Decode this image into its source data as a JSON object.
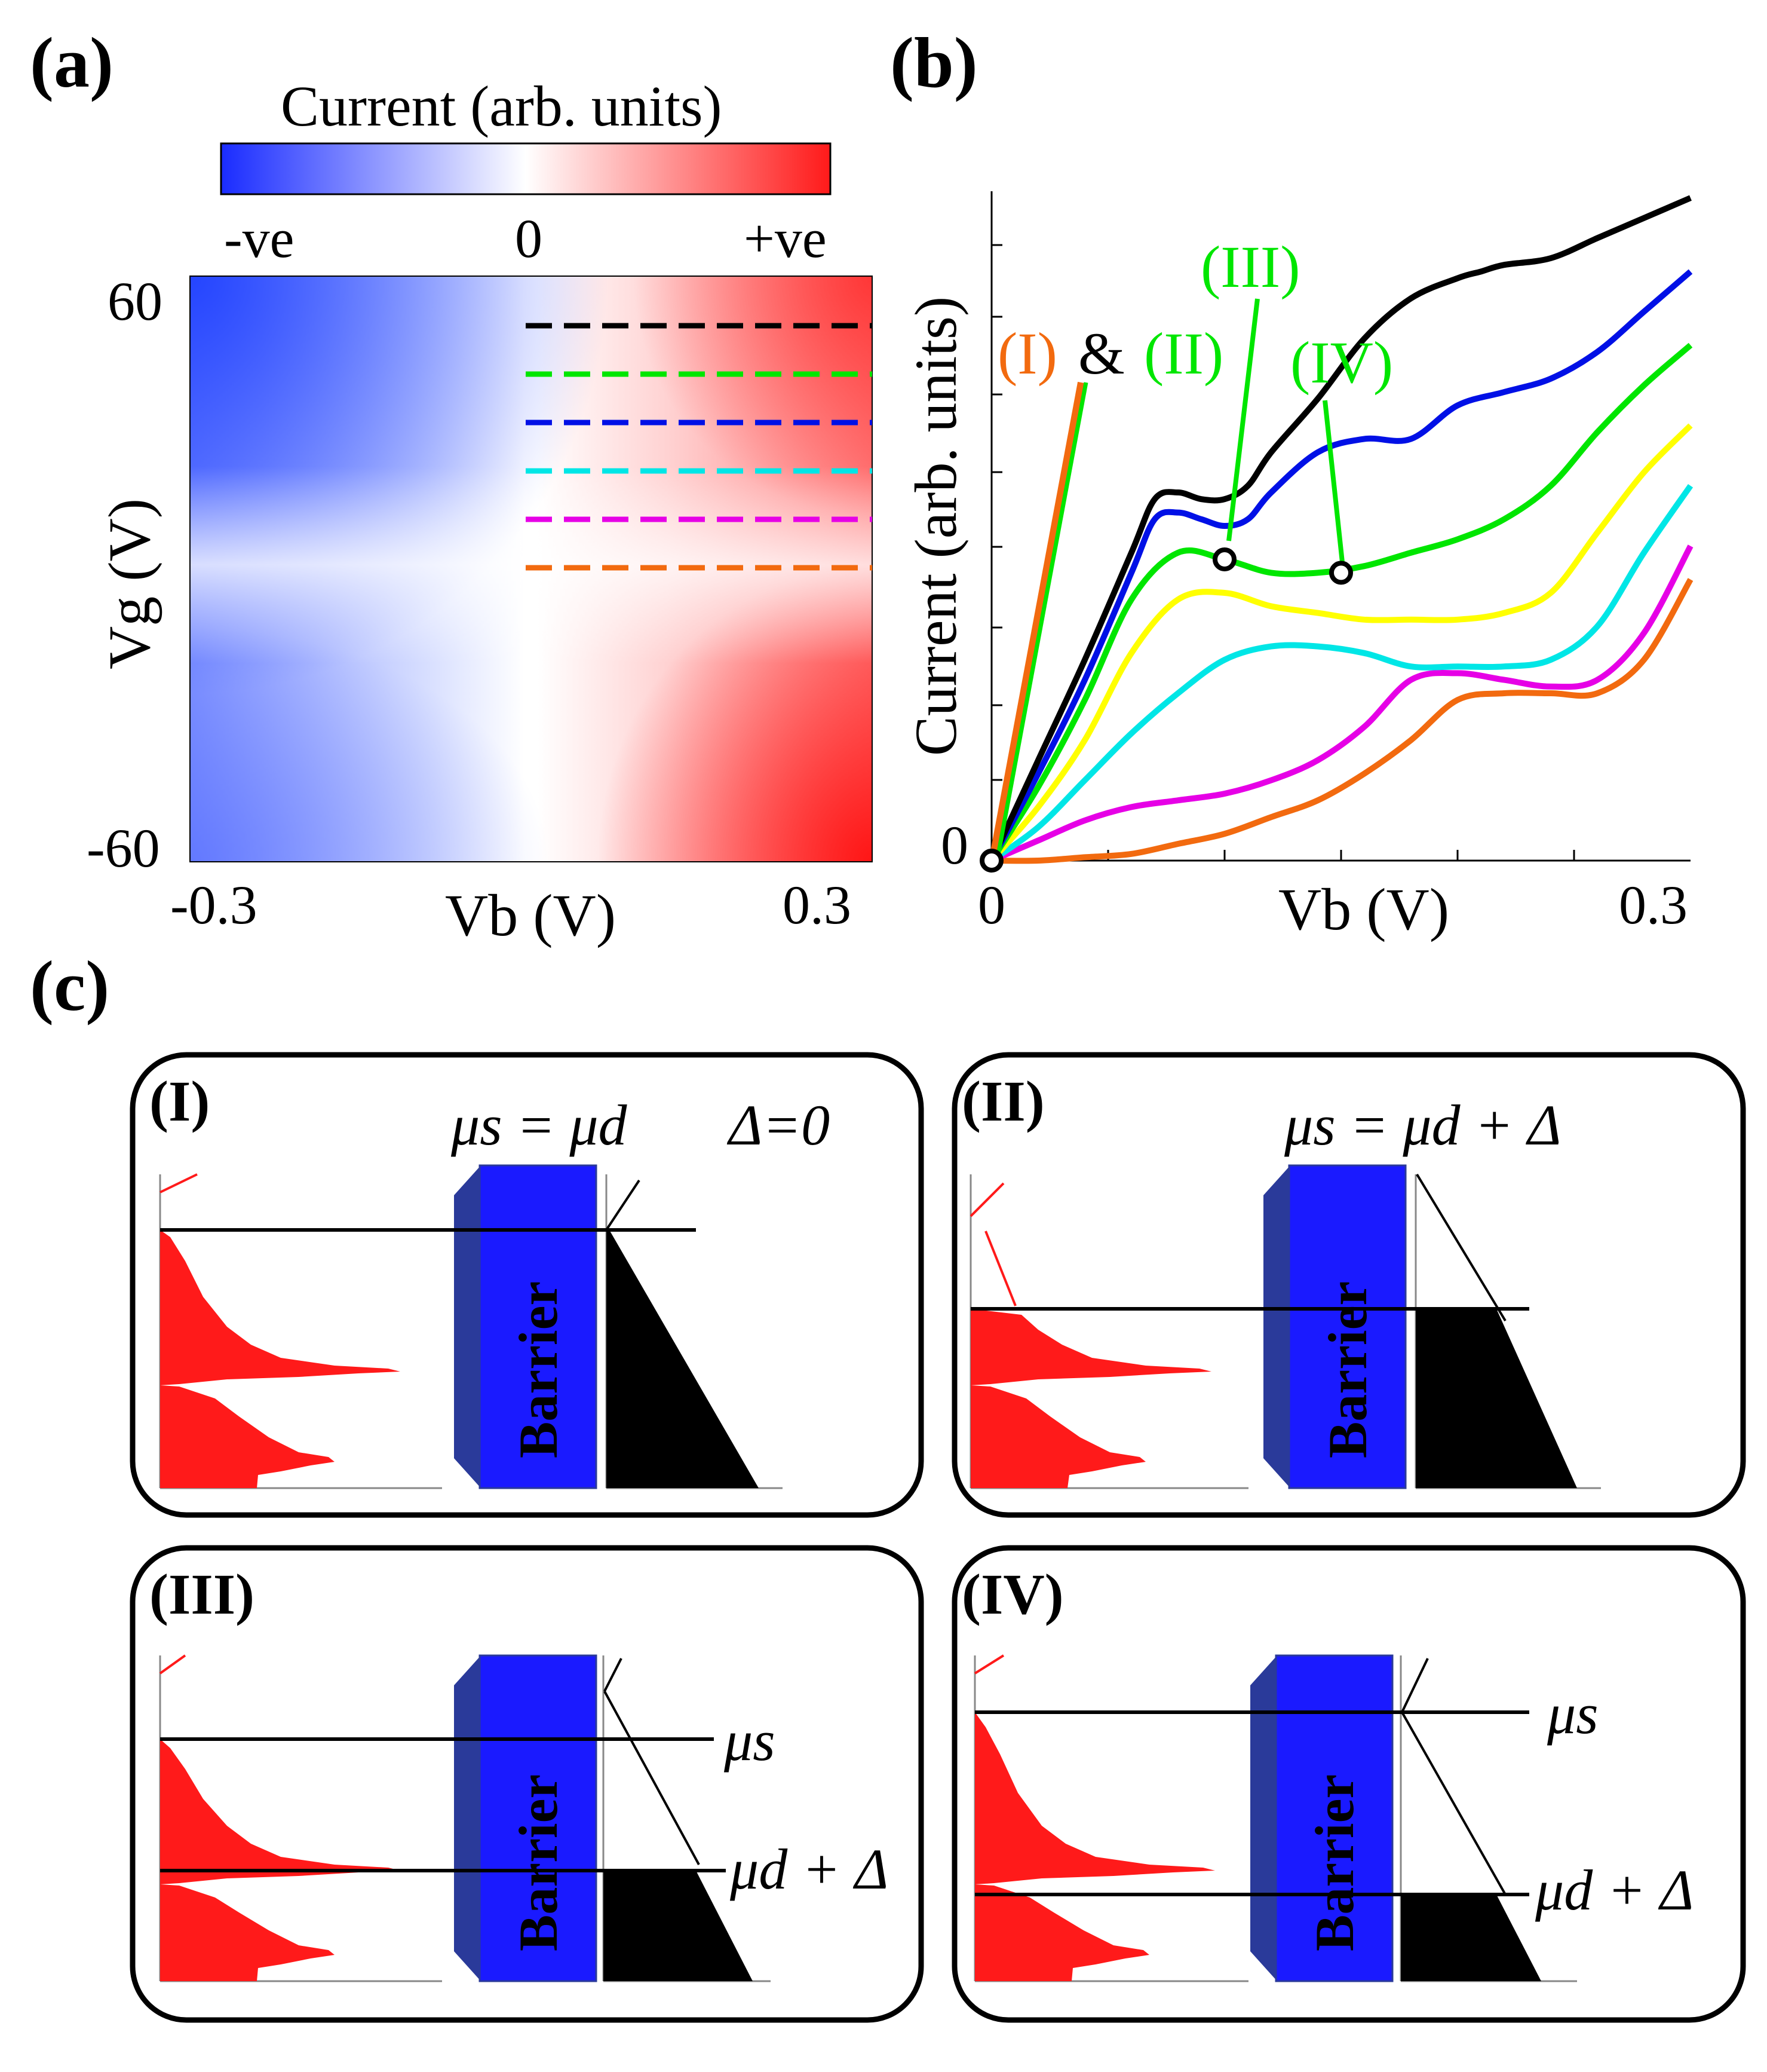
{
  "panel_a": {
    "label": "(a)",
    "colorbar": {
      "title": "Current (arb. units)",
      "tick_neg": "-ve",
      "tick_zero": "0",
      "tick_pos": "+ve",
      "color_neg": "#1a2cff",
      "color_zero": "#ffffff",
      "color_pos": "#ff1a1a"
    },
    "y_tick_top": "60",
    "y_tick_bottom": "-60",
    "y_axis_label": "Vg (V)",
    "x_tick_left": "-0.3",
    "x_tick_right": "0.3",
    "x_axis_label": "Vb (V)",
    "cut_lines": [
      {
        "color": "#000000",
        "vg": 60
      },
      {
        "color": "#00e600",
        "vg": 48
      },
      {
        "color": "#0010e6",
        "vg": 36
      },
      {
        "color": "#00e6e6",
        "vg": 24
      },
      {
        "color": "#e600e6",
        "vg": 12
      },
      {
        "color": "#f26a0f",
        "vg": 0
      }
    ]
  },
  "panel_b": {
    "label": "(b)",
    "y_axis_label": "Current (arb. units)",
    "x_axis_label": "Vb (V)",
    "x_tick_left": "0",
    "x_tick_right": "0.3",
    "y_tick_zero": "0",
    "annotations": {
      "I": "(I)",
      "amp": "&",
      "II": "(II)",
      "III": "(III)",
      "IV": "(IV)",
      "color_I": "#f26a0f",
      "color_amp": "#000000",
      "color_green": "#00e600"
    }
  },
  "chart_data": {
    "type": "line",
    "title": "",
    "xlabel": "Vb (V)",
    "ylabel": "Current (arb. units)",
    "xlim": [
      0,
      0.3
    ],
    "ylim": [
      0,
      10
    ],
    "series": [
      {
        "name": "black",
        "color": "#000000",
        "x": [
          0,
          0.02,
          0.04,
          0.06,
          0.07,
          0.08,
          0.09,
          0.1,
          0.11,
          0.12,
          0.14,
          0.16,
          0.18,
          0.2,
          0.21,
          0.22,
          0.24,
          0.26,
          0.28,
          0.3
        ],
        "y": [
          0,
          1.5,
          3.0,
          4.6,
          5.4,
          5.5,
          5.4,
          5.4,
          5.6,
          6.1,
          6.9,
          7.8,
          8.4,
          8.7,
          8.8,
          8.9,
          9.0,
          9.3,
          9.6,
          9.9
        ]
      },
      {
        "name": "blue",
        "color": "#0010e6",
        "x": [
          0,
          0.02,
          0.04,
          0.06,
          0.07,
          0.08,
          0.09,
          0.1,
          0.11,
          0.12,
          0.14,
          0.16,
          0.18,
          0.2,
          0.22,
          0.24,
          0.26,
          0.28,
          0.3
        ],
        "y": [
          0,
          1.3,
          2.7,
          4.3,
          5.1,
          5.2,
          5.1,
          5.0,
          5.1,
          5.5,
          6.1,
          6.3,
          6.3,
          6.8,
          7.0,
          7.2,
          7.6,
          8.2,
          8.8
        ]
      },
      {
        "name": "green",
        "color": "#00e600",
        "x": [
          0,
          0.02,
          0.04,
          0.06,
          0.08,
          0.1,
          0.12,
          0.14,
          0.16,
          0.18,
          0.2,
          0.22,
          0.24,
          0.26,
          0.28,
          0.3
        ],
        "y": [
          0,
          1.1,
          2.4,
          3.9,
          4.6,
          4.5,
          4.3,
          4.3,
          4.4,
          4.6,
          4.8,
          5.1,
          5.6,
          6.4,
          7.1,
          7.7
        ]
      },
      {
        "name": "yellow",
        "color": "#ffff00",
        "x": [
          0,
          0.02,
          0.04,
          0.06,
          0.08,
          0.1,
          0.12,
          0.14,
          0.16,
          0.18,
          0.2,
          0.22,
          0.24,
          0.26,
          0.28,
          0.3
        ],
        "y": [
          0,
          0.8,
          1.8,
          3.1,
          3.9,
          4.0,
          3.8,
          3.7,
          3.6,
          3.6,
          3.6,
          3.7,
          4.0,
          4.9,
          5.8,
          6.5
        ]
      },
      {
        "name": "cyan",
        "color": "#00e6e6",
        "x": [
          0,
          0.02,
          0.04,
          0.06,
          0.08,
          0.1,
          0.12,
          0.14,
          0.16,
          0.18,
          0.2,
          0.22,
          0.24,
          0.26,
          0.28,
          0.3
        ],
        "y": [
          0,
          0.5,
          1.2,
          1.9,
          2.5,
          3.0,
          3.2,
          3.2,
          3.1,
          2.9,
          2.9,
          2.9,
          3.0,
          3.5,
          4.6,
          5.6
        ]
      },
      {
        "name": "magenta",
        "color": "#e600e6",
        "x": [
          0,
          0.02,
          0.04,
          0.06,
          0.08,
          0.1,
          0.12,
          0.14,
          0.16,
          0.18,
          0.2,
          0.22,
          0.24,
          0.26,
          0.28,
          0.3
        ],
        "y": [
          0,
          0.3,
          0.6,
          0.8,
          0.9,
          1.0,
          1.2,
          1.5,
          2.0,
          2.7,
          2.8,
          2.7,
          2.6,
          2.7,
          3.4,
          4.7
        ]
      },
      {
        "name": "orange",
        "color": "#f26a0f",
        "x": [
          0,
          0.02,
          0.04,
          0.06,
          0.08,
          0.1,
          0.12,
          0.14,
          0.16,
          0.18,
          0.2,
          0.22,
          0.24,
          0.26,
          0.28,
          0.3
        ],
        "y": [
          0,
          0.0,
          0.05,
          0.1,
          0.25,
          0.4,
          0.65,
          0.9,
          1.3,
          1.8,
          2.4,
          2.5,
          2.5,
          2.5,
          3.0,
          4.2
        ]
      }
    ],
    "markers": [
      {
        "name": "origin",
        "x": 0,
        "y": 0
      },
      {
        "name": "III",
        "x": 0.1,
        "y": 4.5
      },
      {
        "name": "IV",
        "x": 0.15,
        "y": 4.3
      }
    ]
  },
  "panel_c": {
    "label": "(c)",
    "barrier_text": "Barrier",
    "boxes": [
      {
        "id": "I",
        "label": "(I)",
        "eq": "μs = μd",
        "delta": "Δ=0"
      },
      {
        "id": "II",
        "label": "(II)",
        "eq": "μs = μd + Δ"
      },
      {
        "id": "III",
        "label": "(III)",
        "mu_s": "μs",
        "mu_d": "μd + Δ"
      },
      {
        "id": "IV",
        "label": "(IV)",
        "mu_s": "μs",
        "mu_d": "μd + Δ"
      }
    ]
  }
}
